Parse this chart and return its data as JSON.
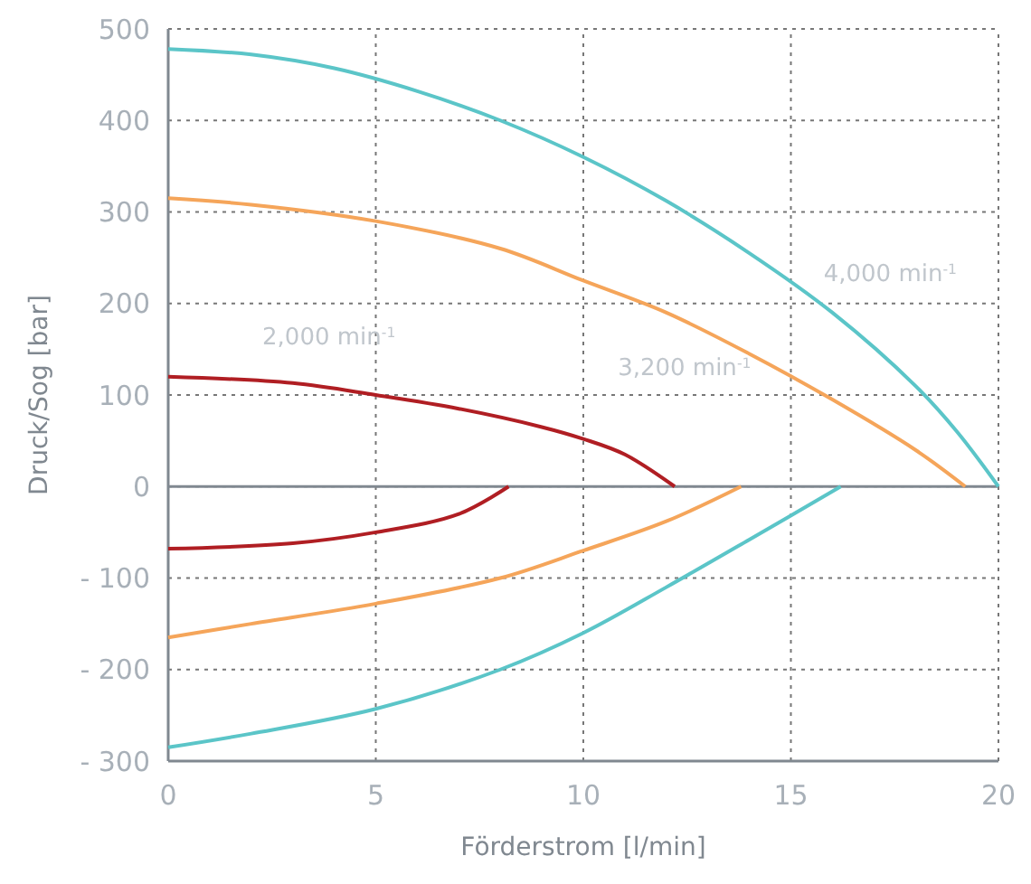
{
  "chart_data": {
    "type": "line",
    "xlabel": "Förderstrom [l/min]",
    "ylabel": "Druck/Sog [bar]",
    "xlim": [
      0,
      20
    ],
    "xticks": [
      0,
      5,
      10,
      15,
      20
    ],
    "ylim": [
      -300,
      500
    ],
    "yticks": [
      {
        "value": -300,
        "label": "- 300"
      },
      {
        "value": -200,
        "label": "- 200"
      },
      {
        "value": -100,
        "label": "- 100"
      },
      0,
      100,
      200,
      300,
      400,
      500
    ],
    "grid": true,
    "marker": "none",
    "line_style": "solid",
    "ref_lines": [
      {
        "axis": "y",
        "value": 0,
        "color": "#808890"
      }
    ],
    "series": [
      {
        "name": "4,000 min$^{-1}$",
        "color": "#5bc5c8",
        "x": [
          0,
          2,
          4,
          6,
          8,
          10,
          12,
          14,
          16,
          18,
          19,
          20
        ],
        "values": [
          478,
          472,
          457,
          432,
          400,
          360,
          312,
          255,
          190,
          110,
          60,
          0
        ]
      },
      {
        "color": "#5bc5c8",
        "x": [
          0,
          2,
          5,
          8,
          10,
          12,
          14,
          16.2
        ],
        "values": [
          -285,
          -270,
          -243,
          -200,
          -160,
          -110,
          -58,
          0
        ]
      },
      {
        "name": "3,200 min$^{-1}$",
        "color": "#f5a55a",
        "x": [
          0,
          2,
          5,
          8,
          10,
          12,
          14,
          16,
          18,
          19.2
        ],
        "values": [
          315,
          308,
          290,
          260,
          225,
          190,
          145,
          95,
          40,
          0
        ]
      },
      {
        "color": "#f5a55a",
        "x": [
          0,
          2,
          5,
          8,
          10,
          12,
          13.8
        ],
        "values": [
          -165,
          -150,
          -128,
          -100,
          -70,
          -38,
          0
        ]
      },
      {
        "name": "2,000 min$^{-1}$",
        "color": "#b01e23",
        "x": [
          0,
          3,
          5,
          7,
          9,
          10,
          11,
          12.2
        ],
        "values": [
          120,
          113,
          100,
          85,
          65,
          52,
          35,
          0
        ]
      },
      {
        "color": "#b01e23",
        "x": [
          0,
          3,
          5,
          7,
          8.2
        ],
        "values": [
          -68,
          -62,
          -50,
          -30,
          0
        ]
      }
    ]
  }
}
